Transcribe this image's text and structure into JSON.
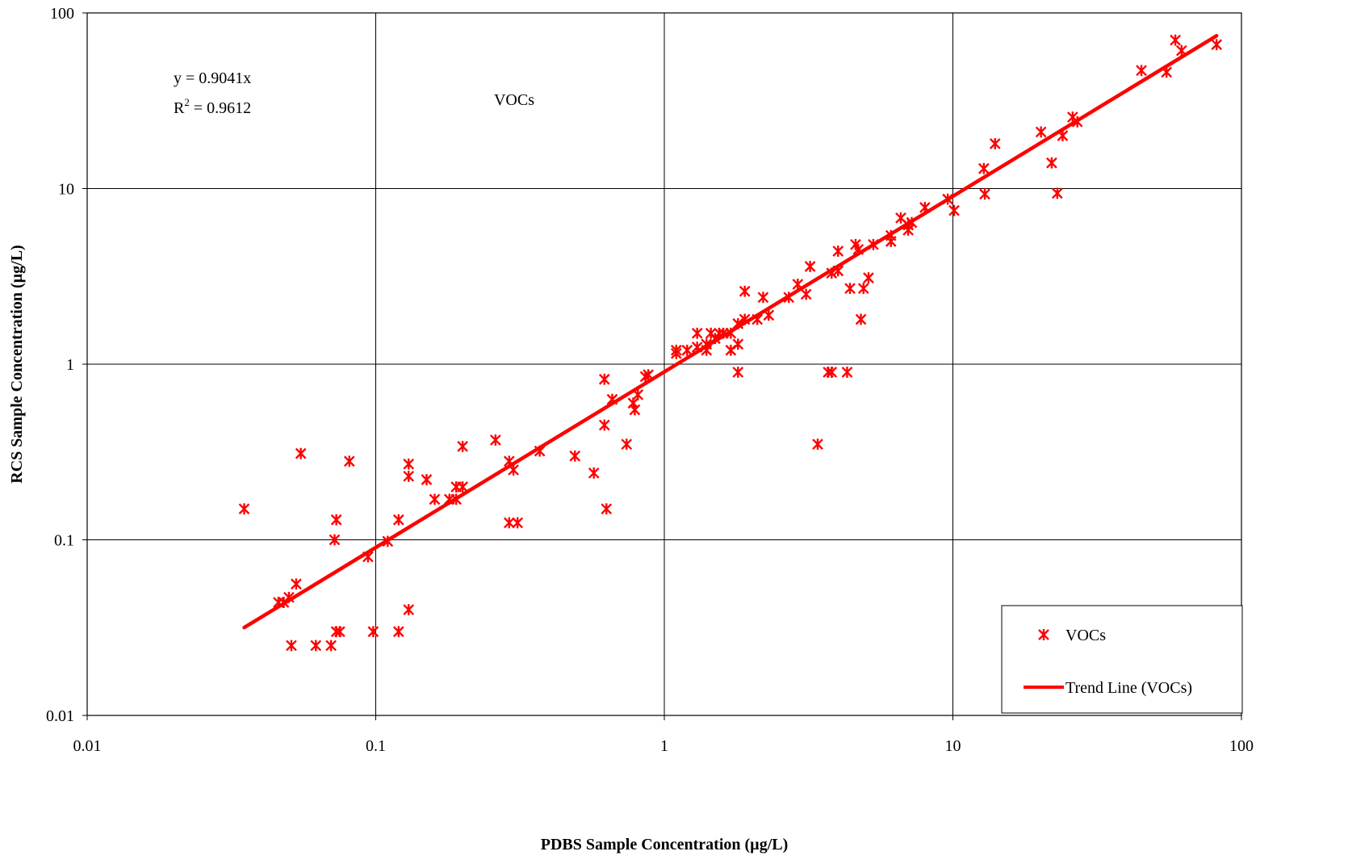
{
  "chart_data": {
    "type": "scatter",
    "title": "VOCs",
    "xlabel": "PDBS Sample Concentration (µg/L)",
    "ylabel": "RCS Sample Concentration (µg/L)",
    "x_scale": "log",
    "y_scale": "log",
    "xlim": [
      0.01,
      100
    ],
    "ylim": [
      0.01,
      100
    ],
    "x_ticks": [
      "0.01",
      "0.1",
      "1",
      "10",
      "100"
    ],
    "y_ticks": [
      "0.01",
      "0.1",
      "1",
      "10",
      "100"
    ],
    "grid": true,
    "legend_position": "bottom-right",
    "annotation": {
      "equation": "y = 0.9041x",
      "r2_prefix": "R",
      "r2_sup": "2",
      "r2_value": " = 0.9612"
    },
    "series": [
      {
        "name": "VOCs",
        "marker": "asterisk",
        "color": "#ff0000",
        "points": [
          [
            0.035,
            0.15
          ],
          [
            0.046,
            0.044
          ],
          [
            0.048,
            0.044
          ],
          [
            0.05,
            0.047
          ],
          [
            0.051,
            0.025
          ],
          [
            0.053,
            0.056
          ],
          [
            0.055,
            0.31
          ],
          [
            0.062,
            0.025
          ],
          [
            0.07,
            0.025
          ],
          [
            0.072,
            0.1
          ],
          [
            0.073,
            0.13
          ],
          [
            0.073,
            0.03
          ],
          [
            0.075,
            0.03
          ],
          [
            0.081,
            0.28
          ],
          [
            0.094,
            0.08
          ],
          [
            0.098,
            0.03
          ],
          [
            0.11,
            0.098
          ],
          [
            0.12,
            0.13
          ],
          [
            0.12,
            0.03
          ],
          [
            0.13,
            0.27
          ],
          [
            0.13,
            0.23
          ],
          [
            0.13,
            0.04
          ],
          [
            0.15,
            0.22
          ],
          [
            0.16,
            0.17
          ],
          [
            0.18,
            0.17
          ],
          [
            0.19,
            0.17
          ],
          [
            0.19,
            0.2
          ],
          [
            0.2,
            0.2
          ],
          [
            0.2,
            0.34
          ],
          [
            0.26,
            0.37
          ],
          [
            0.29,
            0.28
          ],
          [
            0.29,
            0.125
          ],
          [
            0.3,
            0.25
          ],
          [
            0.31,
            0.125
          ],
          [
            0.37,
            0.32
          ],
          [
            0.49,
            0.3
          ],
          [
            0.57,
            0.24
          ],
          [
            0.62,
            0.82
          ],
          [
            0.62,
            0.45
          ],
          [
            0.63,
            0.15
          ],
          [
            0.66,
            0.63
          ],
          [
            0.74,
            0.35
          ],
          [
            0.78,
            0.6
          ],
          [
            0.79,
            0.55
          ],
          [
            0.81,
            0.67
          ],
          [
            0.86,
            0.85
          ],
          [
            0.88,
            0.87
          ],
          [
            1.1,
            1.2
          ],
          [
            1.1,
            1.15
          ],
          [
            1.2,
            1.2
          ],
          [
            1.3,
            1.5
          ],
          [
            1.3,
            1.25
          ],
          [
            1.4,
            1.3
          ],
          [
            1.4,
            1.2
          ],
          [
            1.45,
            1.5
          ],
          [
            1.5,
            1.4
          ],
          [
            1.55,
            1.5
          ],
          [
            1.6,
            1.5
          ],
          [
            1.7,
            1.5
          ],
          [
            1.7,
            1.2
          ],
          [
            1.8,
            1.7
          ],
          [
            1.8,
            1.3
          ],
          [
            1.8,
            0.9
          ],
          [
            1.9,
            1.8
          ],
          [
            1.9,
            2.6
          ],
          [
            2.1,
            1.8
          ],
          [
            2.2,
            2.4
          ],
          [
            2.3,
            1.9
          ],
          [
            2.7,
            2.4
          ],
          [
            2.9,
            2.85
          ],
          [
            3.1,
            2.5
          ],
          [
            3.2,
            3.6
          ],
          [
            3.4,
            0.35
          ],
          [
            3.7,
            0.9
          ],
          [
            3.8,
            0.9
          ],
          [
            3.8,
            3.3
          ],
          [
            4.0,
            3.4
          ],
          [
            4.0,
            4.4
          ],
          [
            4.3,
            0.9
          ],
          [
            4.4,
            2.7
          ],
          [
            4.6,
            4.8
          ],
          [
            4.7,
            4.5
          ],
          [
            4.8,
            1.8
          ],
          [
            4.9,
            2.7
          ],
          [
            5.1,
            3.1
          ],
          [
            5.3,
            4.8
          ],
          [
            6.1,
            5.0
          ],
          [
            6.1,
            5.4
          ],
          [
            6.6,
            6.8
          ],
          [
            7.0,
            6.2
          ],
          [
            7.0,
            5.8
          ],
          [
            7.2,
            6.4
          ],
          [
            8.0,
            7.8
          ],
          [
            9.6,
            8.7
          ],
          [
            10.1,
            7.5
          ],
          [
            12.8,
            13.0
          ],
          [
            12.9,
            9.3
          ],
          [
            14.0,
            18.0
          ],
          [
            20.2,
            21.0
          ],
          [
            22.0,
            14.0
          ],
          [
            23.0,
            9.4
          ],
          [
            24.0,
            20.0
          ],
          [
            26.0,
            25.5
          ],
          [
            27.0,
            24.0
          ],
          [
            45.0,
            47.0
          ],
          [
            55.0,
            46.0
          ],
          [
            59.0,
            70.0
          ],
          [
            62.0,
            61.0
          ],
          [
            82.0,
            66.0
          ]
        ]
      },
      {
        "name": "Trend Line (VOCs)",
        "type": "line",
        "color": "#ff0000",
        "slope": 0.9041,
        "x": [
          0.035,
          82.0
        ],
        "y": [
          0.031644,
          74.136
        ]
      }
    ]
  }
}
